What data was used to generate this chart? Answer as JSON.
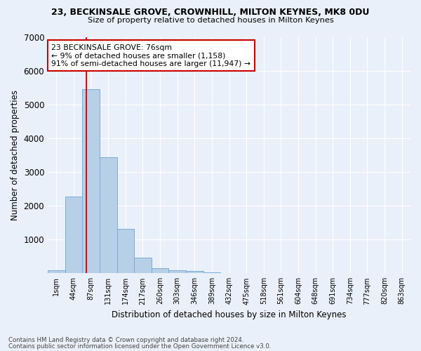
{
  "title1": "23, BECKINSALE GROVE, CROWNHILL, MILTON KEYNES, MK8 0DU",
  "title2": "Size of property relative to detached houses in Milton Keynes",
  "xlabel": "Distribution of detached houses by size in Milton Keynes",
  "ylabel": "Number of detached properties",
  "categories": [
    "1sqm",
    "44sqm",
    "87sqm",
    "131sqm",
    "174sqm",
    "217sqm",
    "260sqm",
    "303sqm",
    "346sqm",
    "389sqm",
    "432sqm",
    "475sqm",
    "518sqm",
    "561sqm",
    "604sqm",
    "648sqm",
    "691sqm",
    "734sqm",
    "777sqm",
    "820sqm",
    "863sqm"
  ],
  "bar_values": [
    90,
    2270,
    5460,
    3440,
    1310,
    470,
    160,
    90,
    60,
    30,
    10,
    0,
    0,
    0,
    0,
    0,
    0,
    0,
    0,
    0,
    0
  ],
  "bar_color": "#b8cfe8",
  "bar_edge_color": "#7aadd4",
  "bg_color": "#eaf0fa",
  "grid_color": "#ffffff",
  "red_line_x": 1.72,
  "annotation_text": "23 BECKINSALE GROVE: 76sqm\n← 9% of detached houses are smaller (1,158)\n91% of semi-detached houses are larger (11,947) →",
  "annotation_box_color": "#ffffff",
  "annotation_box_edge": "#cc0000",
  "ylim": [
    0,
    7000
  ],
  "yticks": [
    0,
    1000,
    2000,
    3000,
    4000,
    5000,
    6000,
    7000
  ],
  "footer1": "Contains HM Land Registry data © Crown copyright and database right 2024.",
  "footer2": "Contains public sector information licensed under the Open Government Licence v3.0."
}
